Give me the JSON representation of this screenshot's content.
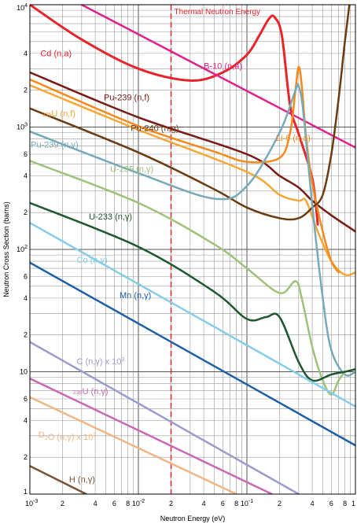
{
  "chart_data": {
    "type": "line",
    "xlabel": "Neutron Energy (eV)",
    "ylabel": "Neutron Cross Section (barns)",
    "x_scale": "log",
    "y_scale": "log",
    "xlim": [
      0.001,
      1.0
    ],
    "ylim": [
      1,
      10000
    ],
    "grid": true,
    "x_ticks": [
      {
        "value": 0.001,
        "base": "10",
        "exp": "-3"
      },
      {
        "value": 0.002,
        "label": "2"
      },
      {
        "value": 0.004,
        "label": "4"
      },
      {
        "value": 0.006,
        "label": "6"
      },
      {
        "value": 0.008,
        "label": "8"
      },
      {
        "value": 0.01,
        "base": "10",
        "exp": "-2"
      },
      {
        "value": 0.02,
        "label": "2"
      },
      {
        "value": 0.04,
        "label": "4"
      },
      {
        "value": 0.06,
        "label": "6"
      },
      {
        "value": 0.08,
        "label": "8"
      },
      {
        "value": 0.1,
        "base": "10",
        "exp": "-1"
      },
      {
        "value": 0.2,
        "label": "2"
      },
      {
        "value": 0.4,
        "label": "4"
      },
      {
        "value": 0.6,
        "label": "6"
      },
      {
        "value": 0.8,
        "label": "8"
      },
      {
        "value": 1.0,
        "label": "1"
      }
    ],
    "y_ticks": [
      {
        "value": 10000,
        "base": "10",
        "exp": "4"
      },
      {
        "value": 4000,
        "label": "4"
      },
      {
        "value": 2000,
        "label": "2"
      },
      {
        "value": 1000,
        "base": "10",
        "exp": "3"
      },
      {
        "value": 600,
        "label": "6"
      },
      {
        "value": 400,
        "label": "4"
      },
      {
        "value": 200,
        "label": "2"
      },
      {
        "value": 100,
        "base": "10",
        "exp": "2"
      },
      {
        "value": 60,
        "label": "6"
      },
      {
        "value": 40,
        "label": "4"
      },
      {
        "value": 20,
        "label": "2"
      },
      {
        "value": 10,
        "label": "10"
      },
      {
        "value": 6,
        "label": "6"
      },
      {
        "value": 4,
        "label": "4"
      },
      {
        "value": 2,
        "label": "2"
      },
      {
        "value": 1,
        "label": "1"
      }
    ],
    "thermal_line": {
      "x": 0.02,
      "label": "Thermal Neutron Energy",
      "color": "#e8232a"
    },
    "series": [
      {
        "name": "Cd (n,a)",
        "label_parts": [
          {
            "t": "Cd (n,a)"
          }
        ],
        "color": "#e8232a",
        "width": 3,
        "label_pos": [
          0.00125,
          3800
        ],
        "points": [
          [
            0.001,
            10000
          ],
          [
            0.003,
            5200
          ],
          [
            0.01,
            3000
          ],
          [
            0.03,
            2400
          ],
          [
            0.06,
            2800
          ],
          [
            0.1,
            3900
          ],
          [
            0.13,
            5600
          ],
          [
            0.16,
            7700
          ],
          [
            0.18,
            7900
          ],
          [
            0.21,
            5600
          ],
          [
            0.25,
            1500
          ],
          [
            0.3,
            880
          ],
          [
            0.4,
            380
          ],
          [
            0.45,
            160
          ]
        ]
      },
      {
        "name": "B-10 (n,a)",
        "label_parts": [
          {
            "t": "B-10 (n,a)"
          }
        ],
        "color": "#e0228c",
        "width": 2.5,
        "label_pos": [
          0.04,
          3000
        ],
        "points": [
          [
            0.003,
            10000
          ],
          [
            1.0,
            680
          ]
        ]
      },
      {
        "name": "Pu-239 (n,f)",
        "label_parts": [
          {
            "t": "Pu-239 (n,f)"
          }
        ],
        "color": "#7a1a14",
        "width": 2.5,
        "label_pos": [
          0.0048,
          1650
        ],
        "points": [
          [
            0.001,
            2800
          ],
          [
            0.01,
            1200
          ],
          [
            0.1,
            600
          ],
          [
            0.2,
            400
          ],
          [
            0.3,
            320
          ],
          [
            0.4,
            250
          ],
          [
            0.6,
            190
          ],
          [
            1.0,
            140
          ]
        ]
      },
      {
        "name": "235U (n,f)",
        "label_parts": [
          {
            "t": "235",
            "sup": true
          },
          {
            "t": "U (n,f)"
          }
        ],
        "color": "#f7a533",
        "width": 2.5,
        "label_pos": [
          0.0013,
          1150
        ],
        "points": [
          [
            0.001,
            2200
          ],
          [
            0.01,
            950
          ],
          [
            0.1,
            430
          ],
          [
            0.2,
            280
          ],
          [
            0.3,
            250
          ],
          [
            0.35,
            250
          ],
          [
            0.45,
            140
          ],
          [
            0.6,
            80
          ],
          [
            0.8,
            62
          ],
          [
            1.0,
            65
          ]
        ]
      },
      {
        "name": "Li-6 (n,a)",
        "label_parts": [
          {
            "t": "Li-6 (n,a)"
          }
        ],
        "color": "#f48a1e",
        "width": 2.5,
        "label_pos": [
          0.185,
          770
        ],
        "points": [
          [
            0.001,
            2450
          ],
          [
            0.01,
            1020
          ],
          [
            0.05,
            630
          ],
          [
            0.1,
            520
          ],
          [
            0.2,
            560
          ],
          [
            0.25,
            900
          ],
          [
            0.28,
            2000
          ],
          [
            0.3,
            3100
          ],
          [
            0.32,
            2200
          ],
          [
            0.35,
            850
          ],
          [
            0.4,
            350
          ],
          [
            0.5,
            140
          ],
          [
            0.6,
            80
          ],
          [
            0.7,
            65
          ]
        ]
      },
      {
        "name": "Pu-240 (n,g)",
        "label_parts": [
          {
            "t": "Pu-240 (n,g)"
          }
        ],
        "color": "#6b3b12",
        "width": 2.5,
        "label_pos": [
          0.0085,
          930
        ],
        "points": [
          [
            0.001,
            1420
          ],
          [
            0.01,
            620
          ],
          [
            0.05,
            310
          ],
          [
            0.1,
            220
          ],
          [
            0.2,
            180
          ],
          [
            0.3,
            180
          ],
          [
            0.4,
            220
          ],
          [
            0.5,
            280
          ],
          [
            0.6,
            600
          ],
          [
            0.7,
            1700
          ],
          [
            0.8,
            5000
          ],
          [
            0.88,
            10000
          ]
        ]
      },
      {
        "name": "Pu-239 (n,γ)",
        "label_parts": [
          {
            "t": "Pu-239 (n,γ)"
          }
        ],
        "color": "#77aab8",
        "width": 2.5,
        "label_pos": [
          0.00102,
          680
        ],
        "points": [
          [
            0.001,
            920
          ],
          [
            0.01,
            420
          ],
          [
            0.05,
            260
          ],
          [
            0.1,
            330
          ],
          [
            0.2,
            900
          ],
          [
            0.28,
            2000
          ],
          [
            0.3,
            2150
          ],
          [
            0.33,
            1350
          ],
          [
            0.4,
            230
          ],
          [
            0.5,
            40
          ],
          [
            0.6,
            15
          ],
          [
            0.8,
            9.5
          ],
          [
            1.0,
            10
          ]
        ]
      },
      {
        "name": "U-235 (n,γ)",
        "label_parts": [
          {
            "t": "U-235 (n,γ)"
          }
        ],
        "color": "#9ec27a",
        "width": 2.5,
        "label_pos": [
          0.0055,
          430
        ],
        "points": [
          [
            0.001,
            530
          ],
          [
            0.01,
            240
          ],
          [
            0.05,
            110
          ],
          [
            0.1,
            70
          ],
          [
            0.2,
            44
          ],
          [
            0.28,
            55
          ],
          [
            0.32,
            40
          ],
          [
            0.4,
            16
          ],
          [
            0.5,
            8.5
          ],
          [
            0.6,
            6.5
          ],
          [
            0.7,
            8.5
          ],
          [
            0.8,
            10
          ]
        ]
      },
      {
        "name": "U-233 (n,γ)",
        "label_parts": [
          {
            "t": "U-233 (n,γ)"
          }
        ],
        "color": "#1f5730",
        "width": 2.5,
        "label_pos": [
          0.0035,
          175
        ],
        "points": [
          [
            0.001,
            240
          ],
          [
            0.01,
            105
          ],
          [
            0.05,
            45
          ],
          [
            0.1,
            27
          ],
          [
            0.15,
            28
          ],
          [
            0.2,
            28
          ],
          [
            0.3,
            12
          ],
          [
            0.4,
            8.5
          ],
          [
            0.6,
            9.5
          ],
          [
            0.8,
            10
          ],
          [
            1.0,
            10.5
          ]
        ]
      },
      {
        "name": "Co (n,γ)",
        "label_parts": [
          {
            "t": "Co (n,γ)"
          }
        ],
        "color": "#86cce6",
        "width": 2.5,
        "label_pos": [
          0.0027,
          78
        ],
        "points": [
          [
            0.001,
            165
          ],
          [
            1.0,
            5.2
          ]
        ]
      },
      {
        "name": "Mn (n,γ)",
        "label_parts": [
          {
            "t": "Mn (n,γ)"
          }
        ],
        "color": "#1e5fa5",
        "width": 2.5,
        "label_pos": [
          0.0067,
          40
        ],
        "points": [
          [
            0.001,
            78
          ],
          [
            1.0,
            2.5
          ]
        ]
      },
      {
        "name": "C (n,γ) x 10³",
        "label_parts": [
          {
            "t": "C (n,γ) x 10"
          },
          {
            "t": "3",
            "sup": true
          }
        ],
        "color": "#9b9ccc",
        "width": 2.5,
        "label_pos": [
          0.0027,
          11.5
        ],
        "points": [
          [
            0.001,
            17.5
          ],
          [
            0.3,
            1.0
          ]
        ]
      },
      {
        "name": "238U (n,γ)",
        "label_parts": [
          {
            "t": "238",
            "sup": true
          },
          {
            "t": "U (n,γ)"
          }
        ],
        "color": "#c86ab2",
        "width": 2.5,
        "label_pos": [
          0.0025,
          6.2
        ],
        "points": [
          [
            0.001,
            8.8
          ],
          [
            0.17,
            1.0
          ]
        ]
      },
      {
        "name": "D2O (n,γ) x 10³",
        "label_parts": [
          {
            "t": "D"
          },
          {
            "t": "2",
            "sub": true
          },
          {
            "t": "O (n,γ) x 10"
          },
          {
            "t": "3",
            "sup": true
          }
        ],
        "color": "#f0b583",
        "width": 2.5,
        "label_pos": [
          0.0012,
          2.9
        ],
        "points": [
          [
            0.001,
            6.2
          ],
          [
            0.08,
            1.0
          ]
        ]
      },
      {
        "name": "H (n,γ)",
        "label_parts": [
          {
            "t": "H (n,γ)"
          }
        ],
        "color": "#7a5236",
        "width": 2.5,
        "label_pos": [
          0.0023,
          1.25
        ],
        "points": [
          [
            0.001,
            1.7
          ],
          [
            0.0033,
            1.0
          ]
        ]
      }
    ]
  }
}
